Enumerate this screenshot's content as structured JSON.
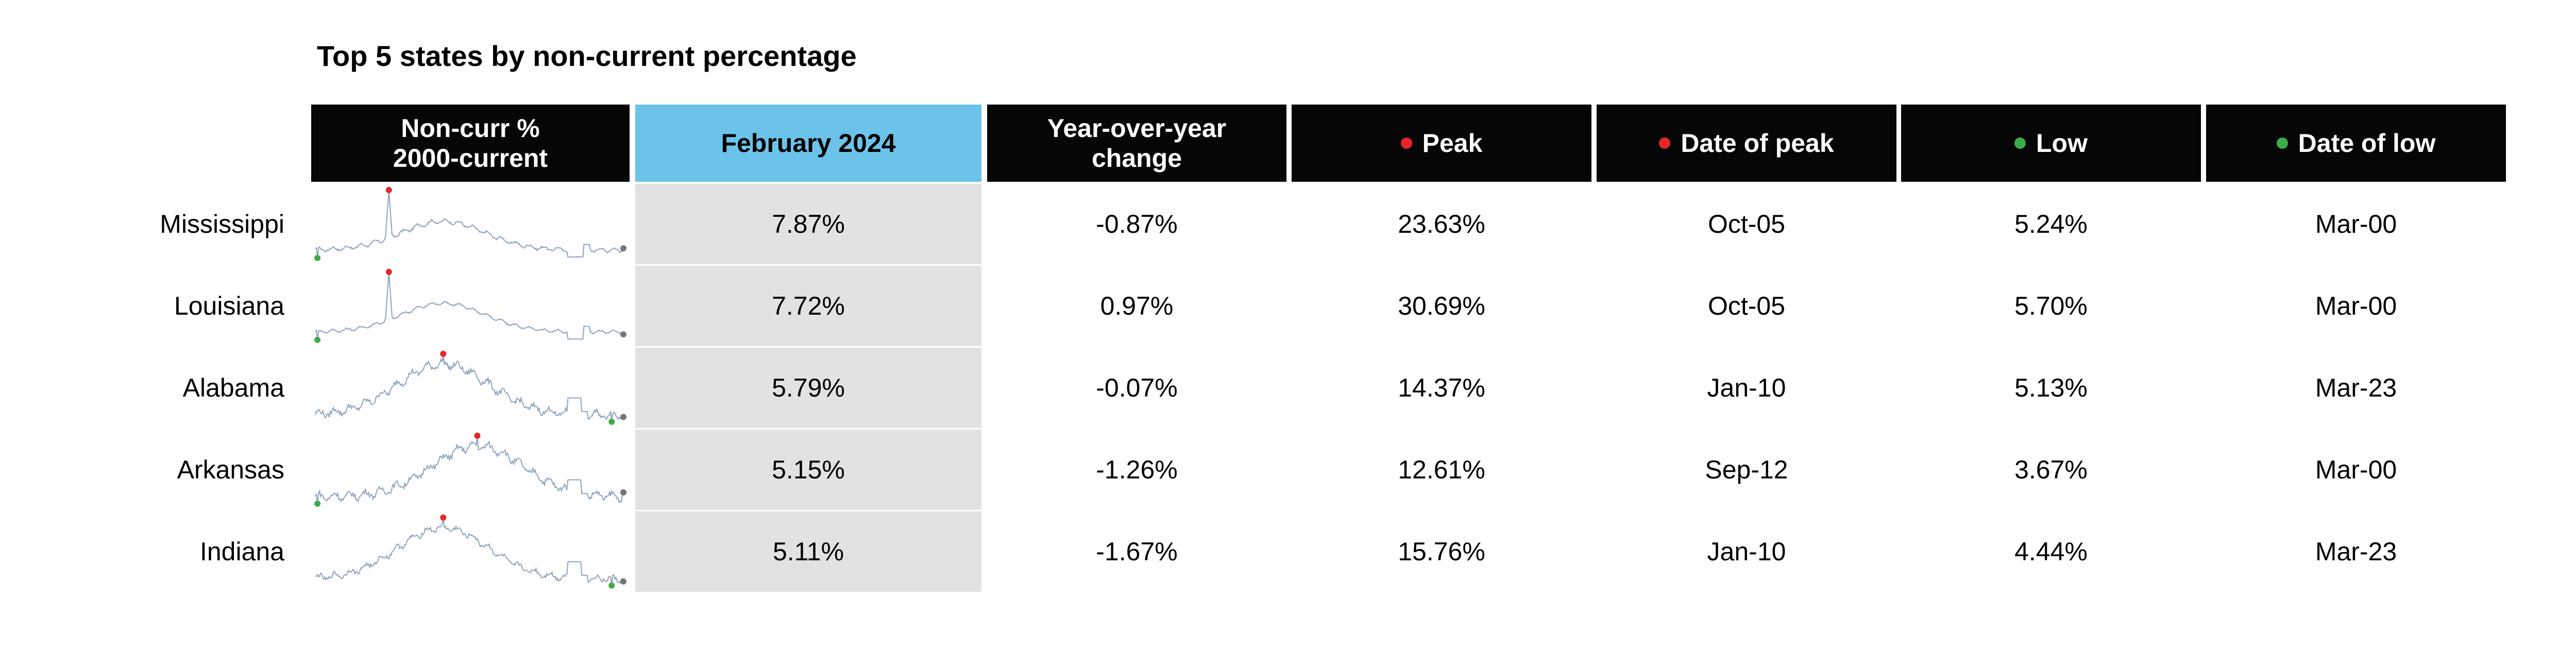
{
  "title": "Top 5 states by non-current percentage",
  "headers": {
    "sparkline": [
      "Non-curr %",
      "2000-current"
    ],
    "feb": "February 2024",
    "yoy": [
      "Year-over-year",
      "change"
    ],
    "peak": "Peak",
    "peak_date": "Date of peak",
    "low": "Low",
    "low_date": "Date of low"
  },
  "colors": {
    "header_bg": "#060606",
    "feb_header_bg": "#6cc3ea",
    "feb_cell_bg": "#e2e2e2",
    "peak_marker": "#e8262a",
    "low_marker": "#3cae49",
    "end_marker": "#777777",
    "sparkline": "#8fa3bd"
  },
  "chart_data": {
    "type": "table",
    "sparkline_range": [
      "Jan-00",
      "Feb-24"
    ],
    "rows": [
      {
        "state": "Mississippi",
        "feb_2024": "7.87%",
        "yoy_change": "-0.87%",
        "peak": "23.63%",
        "peak_date": "Oct-05",
        "low": "5.24%",
        "low_date": "Mar-00"
      },
      {
        "state": "Louisiana",
        "feb_2024": "7.72%",
        "yoy_change": "0.97%",
        "peak": "30.69%",
        "peak_date": "Oct-05",
        "low": "5.70%",
        "low_date": "Mar-00"
      },
      {
        "state": "Alabama",
        "feb_2024": "5.79%",
        "yoy_change": "-0.07%",
        "peak": "14.37%",
        "peak_date": "Jan-10",
        "low": "5.13%",
        "low_date": "Mar-23"
      },
      {
        "state": "Arkansas",
        "feb_2024": "5.15%",
        "yoy_change": "-1.26%",
        "peak": "12.61%",
        "peak_date": "Sep-12",
        "low": "3.67%",
        "low_date": "Mar-00"
      },
      {
        "state": "Indiana",
        "feb_2024": "5.11%",
        "yoy_change": "-1.67%",
        "peak": "15.76%",
        "peak_date": "Jan-10",
        "low": "4.44%",
        "low_date": "Mar-23"
      }
    ]
  }
}
